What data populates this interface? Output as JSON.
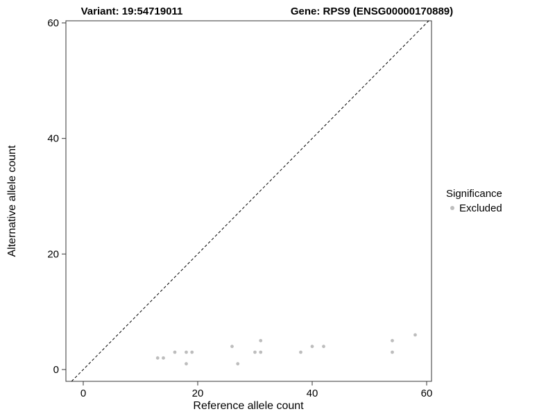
{
  "chart_data": {
    "type": "scatter",
    "title_left": "Variant: 19:54719011",
    "title_right": "Gene: RPS9 (ENSG00000170889)",
    "xlabel": "Reference allele count",
    "ylabel": "Alternative allele count",
    "xlim": [
      -3.03,
      60.85
    ],
    "ylim": [
      -2.04,
      60.36
    ],
    "xticks": [
      0,
      20,
      40,
      60
    ],
    "yticks": [
      0,
      20,
      40,
      60
    ],
    "grid": "off",
    "identity_line": {
      "style": "dashed",
      "color": "#000000",
      "equation": "y = x"
    },
    "legend": {
      "position": "right",
      "title": "Significance",
      "entries": [
        {
          "label": "Excluded",
          "color": "#bdbdbd"
        }
      ]
    },
    "series": [
      {
        "name": "Excluded",
        "color": "#bdbdbd",
        "points": [
          [
            13,
            2
          ],
          [
            14,
            2
          ],
          [
            16,
            3
          ],
          [
            18,
            1
          ],
          [
            18,
            3
          ],
          [
            19,
            3
          ],
          [
            26,
            4
          ],
          [
            27,
            1
          ],
          [
            30,
            3
          ],
          [
            31,
            5
          ],
          [
            31,
            3
          ],
          [
            38,
            3
          ],
          [
            40,
            4
          ],
          [
            42,
            4
          ],
          [
            54,
            3
          ],
          [
            54,
            5
          ],
          [
            58,
            6
          ]
        ]
      }
    ]
  }
}
